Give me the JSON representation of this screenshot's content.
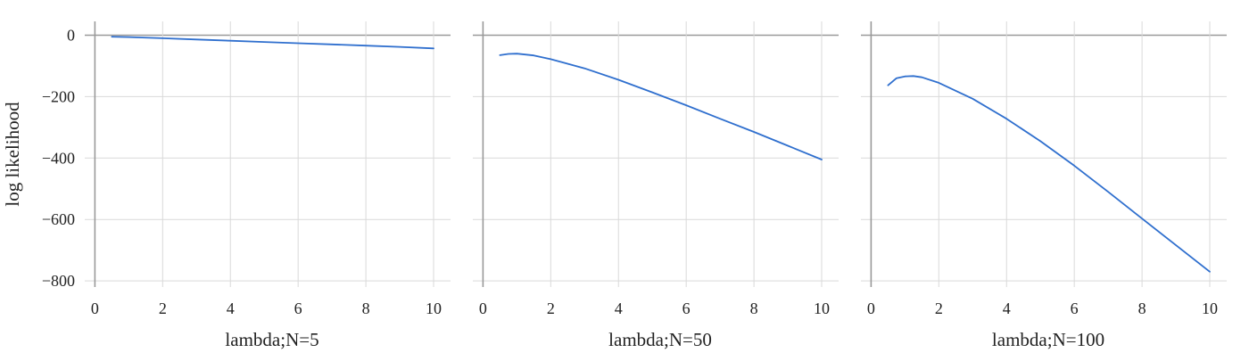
{
  "chart_data": {
    "type": "line",
    "ylabel": "log likelihood",
    "shared_y": true,
    "ylim": [
      -820,
      45
    ],
    "yticks": [
      0,
      -200,
      -400,
      -600,
      -800
    ],
    "ytick_labels": [
      "0",
      "−200",
      "−400",
      "−600",
      "−800"
    ],
    "grid": true,
    "line_color": "#2f6fce",
    "grid_color": "#d9d9d9",
    "zero_line_color": "#999999",
    "panels": [
      {
        "xlabel": "lambda;N=5",
        "xlim": [
          -0.3,
          10.5
        ],
        "xticks": [
          0,
          2,
          4,
          6,
          8,
          10
        ],
        "xtick_labels": [
          "0",
          "2",
          "4",
          "6",
          "8",
          "10"
        ],
        "series": [
          {
            "x": [
              0.5,
              1,
              2,
              3,
              4,
              5,
              6,
              7,
              8,
              9,
              10
            ],
            "y": [
              -5,
              -6,
              -10,
              -14,
              -18,
              -22,
              -26,
              -30,
              -34,
              -38,
              -43
            ]
          }
        ]
      },
      {
        "xlabel": "lambda;N=50",
        "xlim": [
          -0.3,
          10.5
        ],
        "xticks": [
          0,
          2,
          4,
          6,
          8,
          10
        ],
        "xtick_labels": [
          "0",
          "2",
          "4",
          "6",
          "8",
          "10"
        ],
        "series": [
          {
            "x": [
              0.5,
              0.75,
              1,
              1.5,
              2,
              3,
              4,
              5,
              6,
              7,
              8,
              9,
              10
            ],
            "y": [
              -65,
              -61,
              -60,
              -66,
              -78,
              -108,
              -145,
              -186,
              -228,
              -272,
              -315,
              -360,
              -405
            ]
          }
        ]
      },
      {
        "xlabel": "lambda;N=100",
        "xlim": [
          -0.3,
          10.5
        ],
        "xticks": [
          0,
          2,
          4,
          6,
          8,
          10
        ],
        "xtick_labels": [
          "0",
          "2",
          "4",
          "6",
          "8",
          "10"
        ],
        "series": [
          {
            "x": [
              0.5,
              0.75,
              1,
              1.25,
              1.5,
              2,
              3,
              4,
              5,
              6,
              7,
              8,
              9,
              10
            ],
            "y": [
              -163,
              -140,
              -134,
              -133,
              -137,
              -155,
              -207,
              -272,
              -345,
              -425,
              -510,
              -597,
              -684,
              -770
            ]
          }
        ]
      }
    ]
  }
}
